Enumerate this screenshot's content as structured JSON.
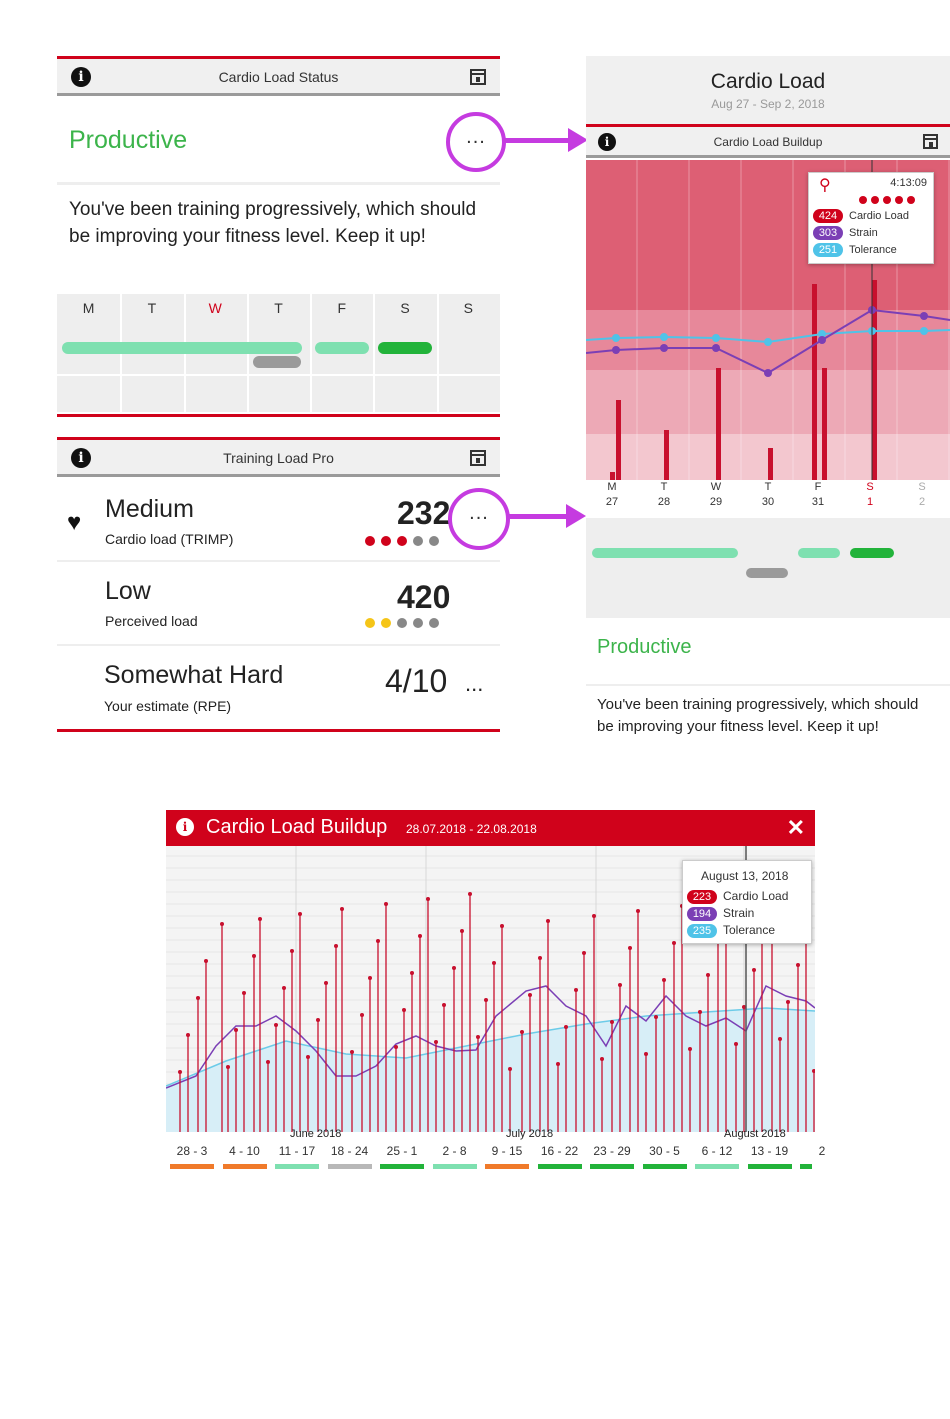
{
  "status_panel": {
    "header_title": "Cardio Load Status",
    "status": "Productive",
    "description": "You've been training progressively, which should be improving your fitness level. Keep it up!",
    "more": "...",
    "week": {
      "days": [
        "M",
        "T",
        "W",
        "T",
        "F",
        "S",
        "S"
      ],
      "highlight_day_index": 2
    }
  },
  "training_load": {
    "header_title": "Training Load Pro",
    "rows": [
      {
        "level": "Medium",
        "sub": "Cardio load (TRIMP)",
        "value": "232",
        "more": "...",
        "dots_filled": 3,
        "dot_color": "#d0021b"
      },
      {
        "level": "Low",
        "sub": "Perceived load",
        "value": "420",
        "dots_filled": 2,
        "dot_color": "#f5c518"
      },
      {
        "level": "Somewhat Hard",
        "sub": "Your estimate (RPE)",
        "value": "4/10",
        "more": "..."
      }
    ]
  },
  "cardio_load_screen": {
    "title": "Cardio Load",
    "date_range": "Aug 27 - Sep 2, 2018",
    "subheader": "Cardio Load Buildup",
    "tooltip": {
      "time": "4:13:09",
      "load": "424",
      "load_label": "Cardio Load",
      "strain": "303",
      "strain_label": "Strain",
      "tolerance": "251",
      "tolerance_label": "Tolerance"
    },
    "days": [
      {
        "d": "M",
        "n": "27"
      },
      {
        "d": "T",
        "n": "28"
      },
      {
        "d": "W",
        "n": "29"
      },
      {
        "d": "T",
        "n": "30"
      },
      {
        "d": "F",
        "n": "31"
      },
      {
        "d": "S",
        "n": "1"
      },
      {
        "d": "S",
        "n": "2"
      }
    ],
    "status": "Productive",
    "description": "You've been training progressively, which should be improving your fitness level. Keep it up!"
  },
  "buildup": {
    "title": "Cardio Load Buildup",
    "date_range": "28.07.2018 - 22.08.2018",
    "close": "✕",
    "tooltip": {
      "date": "August 13, 2018",
      "load": "223",
      "load_label": "Cardio Load",
      "strain": "194",
      "strain_label": "Strain",
      "tolerance": "235",
      "tolerance_label": "Tolerance"
    },
    "month_labels": [
      "June 2018",
      "July 2018",
      "August 2018"
    ],
    "weeks": [
      "28 - 3",
      "4 - 10",
      "11 - 17",
      "18 - 24",
      "25 - 1",
      "2 - 8",
      "9 - 15",
      "16 - 22",
      "23 - 29",
      "30 - 5",
      "6 - 12",
      "13 - 19",
      "2"
    ],
    "week_colors": [
      "#f07a2a",
      "#f07a2a",
      "#7ee0b0",
      "#b8b8b8",
      "#22b33a",
      "#7ee0b0",
      "#f07a2a",
      "#22b33a",
      "#22b33a",
      "#22b33a",
      "#7ee0b0",
      "#22b33a",
      "#22b33a"
    ]
  },
  "colors": {
    "accent_red": "#d0021b",
    "productive_green": "#3cb44b",
    "strain_purple": "#7b3fb5",
    "tolerance_blue": "#4fc3e8",
    "highlight_purple": "#c53be0"
  }
}
